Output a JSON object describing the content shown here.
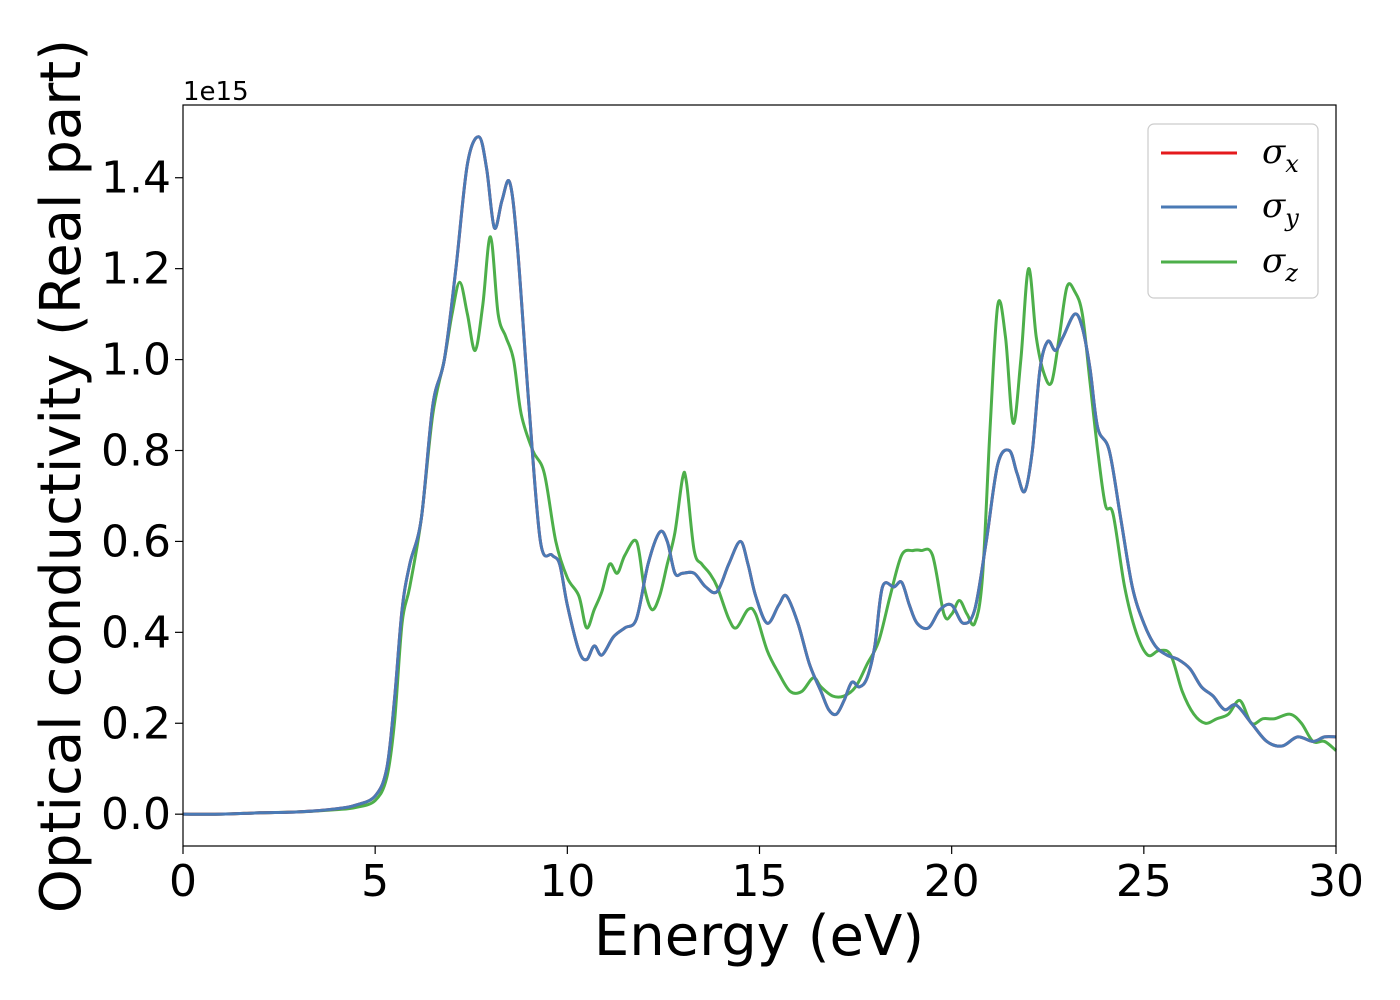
{
  "chart_data": {
    "type": "line",
    "title": "",
    "xlabel": "Energy (eV)",
    "ylabel": "Optical conductivity (Real part)",
    "y_offset_label": "1e15",
    "xlim": [
      0,
      30
    ],
    "ylim": [
      -0.07,
      1.56
    ],
    "x_ticks": [
      0,
      5,
      10,
      15,
      20,
      25,
      30
    ],
    "x_tick_labels": [
      "0",
      "5",
      "10",
      "15",
      "20",
      "25",
      "30"
    ],
    "y_ticks": [
      0.0,
      0.2,
      0.4,
      0.6,
      0.8,
      1.0,
      1.2,
      1.4
    ],
    "y_tick_labels": [
      "0.0",
      "0.2",
      "0.4",
      "0.6",
      "0.8",
      "1.0",
      "1.2",
      "1.4"
    ],
    "grid": false,
    "legend_position": "top-right",
    "series": [
      {
        "name": "σx",
        "color": "#e41a1c",
        "x": [
          0,
          1,
          2,
          3,
          4,
          4.5,
          5,
          5.3,
          5.5,
          5.7,
          5.9,
          6.2,
          6.5,
          6.8,
          7.1,
          7.4,
          7.7,
          7.9,
          8.1,
          8.3,
          8.5,
          8.7,
          9.0,
          9.3,
          9.6,
          9.8,
          10.0,
          10.3,
          10.5,
          10.7,
          10.9,
          11.2,
          11.5,
          11.8,
          12.1,
          12.4,
          12.6,
          12.8,
          13.0,
          13.3,
          13.6,
          13.9,
          14.2,
          14.5,
          14.7,
          14.9,
          15.2,
          15.5,
          15.7,
          16.0,
          16.3,
          16.6,
          16.8,
          17.0,
          17.2,
          17.4,
          17.6,
          17.8,
          18.0,
          18.2,
          18.5,
          18.7,
          18.9,
          19.1,
          19.4,
          19.7,
          20.0,
          20.3,
          20.6,
          20.9,
          21.2,
          21.5,
          21.7,
          21.9,
          22.1,
          22.3,
          22.5,
          22.7,
          22.9,
          23.2,
          23.4,
          23.6,
          23.8,
          24.1,
          24.4,
          24.7,
          25.0,
          25.3,
          25.6,
          25.9,
          26.2,
          26.5,
          26.8,
          27.1,
          27.4,
          27.8,
          28.2,
          28.6,
          29.0,
          29.4,
          29.7,
          30.0
        ],
        "y": [
          0.0,
          0.0,
          0.003,
          0.005,
          0.012,
          0.02,
          0.04,
          0.1,
          0.25,
          0.45,
          0.55,
          0.65,
          0.9,
          1.0,
          1.2,
          1.43,
          1.49,
          1.42,
          1.29,
          1.35,
          1.39,
          1.25,
          0.9,
          0.6,
          0.57,
          0.55,
          0.46,
          0.36,
          0.34,
          0.37,
          0.35,
          0.39,
          0.41,
          0.43,
          0.55,
          0.62,
          0.6,
          0.53,
          0.53,
          0.53,
          0.5,
          0.49,
          0.55,
          0.6,
          0.55,
          0.48,
          0.42,
          0.46,
          0.48,
          0.42,
          0.33,
          0.27,
          0.23,
          0.22,
          0.25,
          0.29,
          0.28,
          0.3,
          0.37,
          0.5,
          0.5,
          0.51,
          0.46,
          0.42,
          0.41,
          0.45,
          0.46,
          0.42,
          0.45,
          0.6,
          0.77,
          0.8,
          0.75,
          0.71,
          0.8,
          0.98,
          1.04,
          1.02,
          1.05,
          1.1,
          1.07,
          0.98,
          0.85,
          0.8,
          0.65,
          0.5,
          0.42,
          0.37,
          0.35,
          0.34,
          0.32,
          0.28,
          0.26,
          0.23,
          0.24,
          0.2,
          0.16,
          0.15,
          0.17,
          0.16,
          0.17,
          0.17
        ]
      },
      {
        "name": "σy",
        "color": "#4a7ab5",
        "x": [
          0,
          1,
          2,
          3,
          4,
          4.5,
          5,
          5.3,
          5.5,
          5.7,
          5.9,
          6.2,
          6.5,
          6.8,
          7.1,
          7.4,
          7.7,
          7.9,
          8.1,
          8.3,
          8.5,
          8.7,
          9.0,
          9.3,
          9.6,
          9.8,
          10.0,
          10.3,
          10.5,
          10.7,
          10.9,
          11.2,
          11.5,
          11.8,
          12.1,
          12.4,
          12.6,
          12.8,
          13.0,
          13.3,
          13.6,
          13.9,
          14.2,
          14.5,
          14.7,
          14.9,
          15.2,
          15.5,
          15.7,
          16.0,
          16.3,
          16.6,
          16.8,
          17.0,
          17.2,
          17.4,
          17.6,
          17.8,
          18.0,
          18.2,
          18.5,
          18.7,
          18.9,
          19.1,
          19.4,
          19.7,
          20.0,
          20.3,
          20.6,
          20.9,
          21.2,
          21.5,
          21.7,
          21.9,
          22.1,
          22.3,
          22.5,
          22.7,
          22.9,
          23.2,
          23.4,
          23.6,
          23.8,
          24.1,
          24.4,
          24.7,
          25.0,
          25.3,
          25.6,
          25.9,
          26.2,
          26.5,
          26.8,
          27.1,
          27.4,
          27.8,
          28.2,
          28.6,
          29.0,
          29.4,
          29.7,
          30.0
        ],
        "y": [
          0.0,
          0.0,
          0.003,
          0.005,
          0.012,
          0.02,
          0.04,
          0.1,
          0.25,
          0.45,
          0.55,
          0.65,
          0.9,
          1.0,
          1.2,
          1.43,
          1.49,
          1.42,
          1.29,
          1.35,
          1.39,
          1.25,
          0.9,
          0.6,
          0.57,
          0.55,
          0.46,
          0.36,
          0.34,
          0.37,
          0.35,
          0.39,
          0.41,
          0.43,
          0.55,
          0.62,
          0.6,
          0.53,
          0.53,
          0.53,
          0.5,
          0.49,
          0.55,
          0.6,
          0.55,
          0.48,
          0.42,
          0.46,
          0.48,
          0.42,
          0.33,
          0.27,
          0.23,
          0.22,
          0.25,
          0.29,
          0.28,
          0.3,
          0.37,
          0.5,
          0.5,
          0.51,
          0.46,
          0.42,
          0.41,
          0.45,
          0.46,
          0.42,
          0.45,
          0.6,
          0.77,
          0.8,
          0.75,
          0.71,
          0.8,
          0.98,
          1.04,
          1.02,
          1.05,
          1.1,
          1.07,
          0.98,
          0.85,
          0.8,
          0.65,
          0.5,
          0.42,
          0.37,
          0.35,
          0.34,
          0.32,
          0.28,
          0.26,
          0.23,
          0.24,
          0.2,
          0.16,
          0.15,
          0.17,
          0.16,
          0.17,
          0.17
        ]
      },
      {
        "name": "σz",
        "color": "#4daf4a",
        "x": [
          0,
          1,
          2,
          3,
          4,
          4.5,
          5,
          5.3,
          5.5,
          5.7,
          5.9,
          6.2,
          6.5,
          6.8,
          7.0,
          7.2,
          7.4,
          7.6,
          7.8,
          8.0,
          8.2,
          8.4,
          8.6,
          8.8,
          9.1,
          9.4,
          9.7,
          10.0,
          10.3,
          10.5,
          10.7,
          10.9,
          11.1,
          11.3,
          11.5,
          11.8,
          12.0,
          12.2,
          12.4,
          12.6,
          12.8,
          13.0,
          13.1,
          13.3,
          13.5,
          13.7,
          13.9,
          14.2,
          14.4,
          14.7,
          14.9,
          15.2,
          15.5,
          15.8,
          16.1,
          16.4,
          16.6,
          16.9,
          17.2,
          17.5,
          17.8,
          18.1,
          18.4,
          18.7,
          19.0,
          19.2,
          19.5,
          19.8,
          20.0,
          20.2,
          20.4,
          20.6,
          20.8,
          21.0,
          21.2,
          21.4,
          21.6,
          21.8,
          22.0,
          22.2,
          22.4,
          22.6,
          22.8,
          23.0,
          23.2,
          23.4,
          23.6,
          23.8,
          24.0,
          24.2,
          24.5,
          24.8,
          25.1,
          25.4,
          25.7,
          26.0,
          26.3,
          26.6,
          26.9,
          27.2,
          27.5,
          27.8,
          28.1,
          28.4,
          28.8,
          29.1,
          29.4,
          29.7,
          30.0
        ],
        "y": [
          0.0,
          0.0,
          0.003,
          0.005,
          0.01,
          0.015,
          0.03,
          0.08,
          0.2,
          0.42,
          0.5,
          0.65,
          0.88,
          1.0,
          1.1,
          1.17,
          1.1,
          1.02,
          1.12,
          1.27,
          1.1,
          1.05,
          1.0,
          0.88,
          0.8,
          0.75,
          0.6,
          0.52,
          0.48,
          0.41,
          0.45,
          0.49,
          0.55,
          0.53,
          0.57,
          0.6,
          0.5,
          0.45,
          0.48,
          0.55,
          0.62,
          0.74,
          0.73,
          0.58,
          0.55,
          0.53,
          0.5,
          0.43,
          0.41,
          0.45,
          0.44,
          0.36,
          0.31,
          0.27,
          0.27,
          0.3,
          0.28,
          0.26,
          0.26,
          0.28,
          0.33,
          0.38,
          0.48,
          0.57,
          0.58,
          0.58,
          0.57,
          0.44,
          0.44,
          0.47,
          0.44,
          0.42,
          0.52,
          0.85,
          1.12,
          1.05,
          0.86,
          1.0,
          1.2,
          1.05,
          0.97,
          0.95,
          1.05,
          1.16,
          1.15,
          1.1,
          0.95,
          0.8,
          0.68,
          0.66,
          0.5,
          0.4,
          0.35,
          0.36,
          0.35,
          0.27,
          0.22,
          0.2,
          0.21,
          0.22,
          0.25,
          0.2,
          0.21,
          0.21,
          0.22,
          0.2,
          0.16,
          0.16,
          0.14
        ]
      }
    ]
  }
}
